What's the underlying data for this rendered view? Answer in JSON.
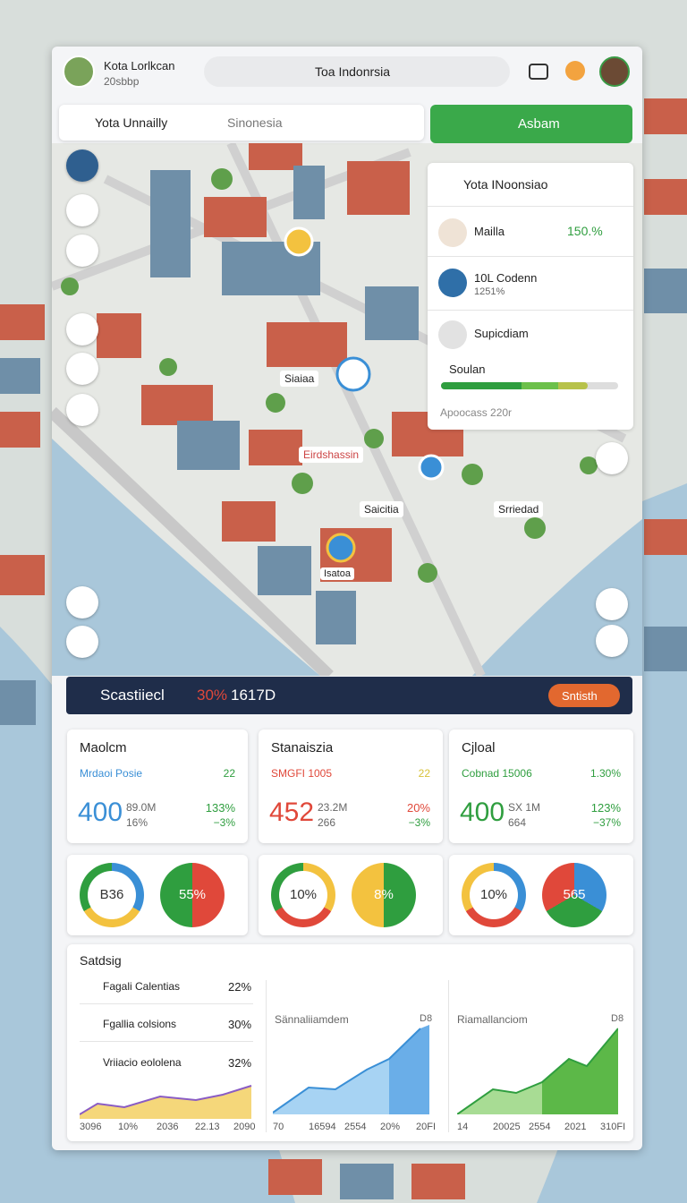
{
  "header": {
    "title": "Kota Lorlkcan",
    "subtitle": "20sbbp",
    "search": "Toa Indonrsia"
  },
  "tabs": {
    "active": "Yota Unnailly",
    "other": "Sinonesia",
    "button": "Asbam"
  },
  "side_panel": {
    "title": "Yota INoonsiao",
    "items": [
      {
        "label": "Mailla",
        "value": "150.%"
      },
      {
        "label": "10L Codenn",
        "value": "1251%"
      },
      {
        "label": "Supicdiam"
      }
    ],
    "progress": {
      "label": "Soulan",
      "caption": "Apoocass 220r"
    }
  },
  "map_labels": [
    "Siaiaa",
    "Eirdshassin",
    "Saicitia",
    "Srriedad",
    "Isatoa"
  ],
  "status_bar": {
    "title": "Scastiiecl",
    "percent": "30%",
    "count": "1617D",
    "button": "Sntisth"
  },
  "cards": [
    {
      "title": "Maolcm",
      "sub": "Mrdaoi Posie",
      "sub_value": "22",
      "big": "400",
      "mid1": "89.0M",
      "mid2": "16%",
      "right1": "133%",
      "right2": "−3%"
    },
    {
      "title": "Stanaiszia",
      "sub": "SMGFI 1005",
      "sub_value": "22",
      "big": "452",
      "mid1": "23.2M",
      "mid2": "266",
      "right1": "20%",
      "right2": "−3%"
    },
    {
      "title": "Cjloal",
      "sub": "Cobnad 15006",
      "sub_value": "1.30%",
      "big": "400",
      "mid1": "SX 1M",
      "mid2": "664",
      "right1": "123%",
      "right2": "−37%"
    }
  ],
  "donuts": [
    "B36",
    "55%",
    "10%",
    "8%",
    "10%",
    "565"
  ],
  "stats": {
    "title": "Satdsig",
    "list": [
      {
        "label": "Fagali Calentias",
        "value": "22%"
      },
      {
        "label": "Fgallia colsions",
        "value": "30%"
      },
      {
        "label": "Vriiacio eololena",
        "value": "32%"
      }
    ],
    "list_axis": [
      "3096",
      "10%",
      "2036",
      "22.13",
      "2090"
    ],
    "chart1": {
      "title": "Sännaliiamdem",
      "tag": "D8",
      "axis": [
        "70",
        "16594",
        "2554",
        "20%",
        "20FI"
      ]
    },
    "chart2": {
      "title": "Riamallanciom",
      "tag": "D8",
      "axis": [
        "14",
        "20025",
        "2554",
        "2021",
        "310FI"
      ]
    }
  }
}
